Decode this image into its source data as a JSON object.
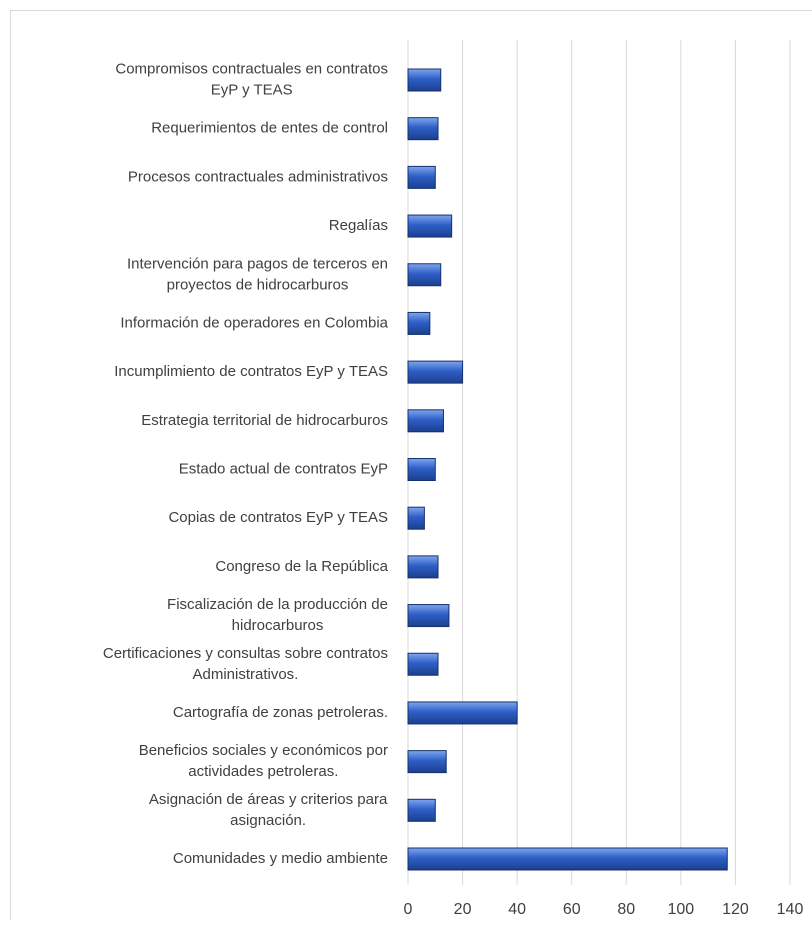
{
  "chart_data": {
    "type": "bar",
    "orientation": "horizontal",
    "categories": [
      "Compromisos contractuales en contratos\nEyP y TEAS",
      "Requerimientos de entes de control",
      "Procesos contractuales administrativos",
      "Regalías",
      "Intervención para pagos de terceros en\nproyectos de hidrocarburos",
      "Información de operadores en Colombia",
      "Incumplimiento de contratos EyP y TEAS",
      "Estrategia territorial de hidrocarburos",
      "Estado actual de contratos EyP",
      "Copias de contratos EyP y TEAS",
      "Congreso de la República",
      "Fiscalización de la producción de\nhidrocarburos",
      "Certificaciones y consultas sobre contratos\nAdministrativos.",
      "Cartografía de zonas petroleras.",
      "Beneficios sociales y económicos por\nactividades petroleras.",
      "Asignación de áreas y criterios para\nasignación.",
      "Comunidades y medio ambiente"
    ],
    "values": [
      12,
      11,
      10,
      16,
      12,
      8,
      20,
      13,
      10,
      6,
      11,
      15,
      11,
      40,
      14,
      10,
      117
    ],
    "color": "#2e5fc7",
    "xlim": [
      0,
      140
    ],
    "xticks": [
      0,
      20,
      40,
      60,
      80,
      100,
      120,
      140
    ],
    "grid": true
  }
}
